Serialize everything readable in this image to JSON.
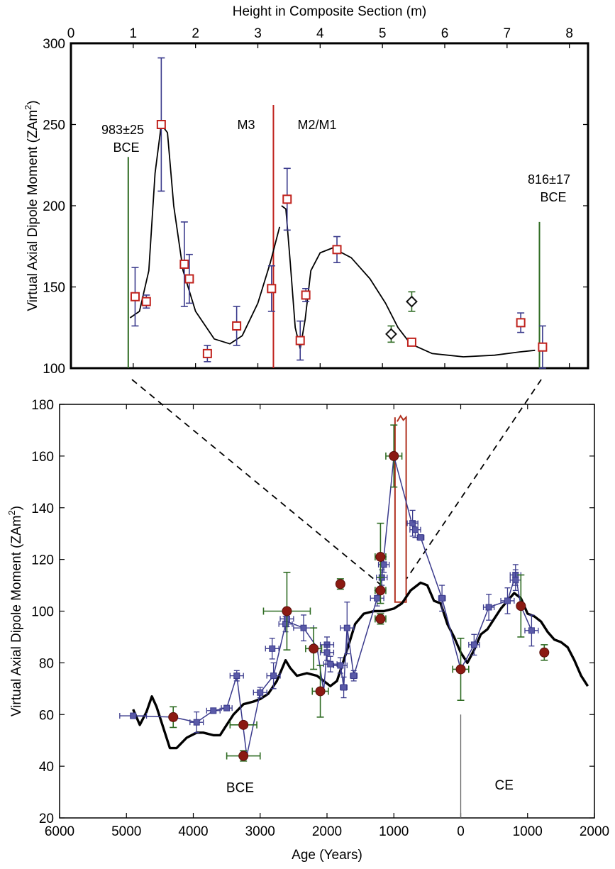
{
  "chart_data": [
    {
      "type": "scatter",
      "panel": "top",
      "xlabel": "Height in Composite Section (m)",
      "ylabel": "Virtual Axial Dipole Moment (ZAm",
      "ylabel_sup": "2",
      "ylabel_close": ")",
      "xlim": [
        0,
        8.3
      ],
      "ylim": [
        100,
        300
      ],
      "xticks": [
        "0",
        "1",
        "2",
        "3",
        "4",
        "5",
        "6",
        "7",
        "8"
      ],
      "yticks": [
        "100",
        "150",
        "200",
        "250",
        "300"
      ],
      "annotations": {
        "left_date_line1": "983±25",
        "left_date_line2": "BCE",
        "m3": "M3",
        "m2m1": "M2/M1",
        "right_date_line1": "816±17",
        "right_date_line2": "BCE"
      },
      "vlines": [
        {
          "x": 0.92,
          "y_top": 230,
          "color": "#2e6b22"
        },
        {
          "x": 3.25,
          "y_top": 262,
          "color": "#c0221d"
        },
        {
          "x": 7.52,
          "y_top": 190,
          "color": "#2e6b22"
        }
      ],
      "square_points": [
        {
          "x": 1.03,
          "y": 144,
          "err": 18
        },
        {
          "x": 1.21,
          "y": 141,
          "err": 4
        },
        {
          "x": 1.45,
          "y": 250,
          "err": 41
        },
        {
          "x": 1.82,
          "y": 164,
          "err": 26
        },
        {
          "x": 1.9,
          "y": 155,
          "err": 15
        },
        {
          "x": 2.19,
          "y": 109,
          "err": 5
        },
        {
          "x": 2.66,
          "y": 126,
          "err": 12
        },
        {
          "x": 3.22,
          "y": 149,
          "err": 14
        },
        {
          "x": 3.47,
          "y": 204,
          "err": 19
        },
        {
          "x": 3.68,
          "y": 117,
          "err": 12
        },
        {
          "x": 3.77,
          "y": 145,
          "err": 4
        },
        {
          "x": 4.27,
          "y": 173,
          "err": 8
        },
        {
          "x": 5.47,
          "y": 116,
          "err": 2
        },
        {
          "x": 7.22,
          "y": 128,
          "err": 6
        },
        {
          "x": 7.57,
          "y": 113,
          "err": 13
        }
      ],
      "diamond_points": [
        {
          "x": 5.14,
          "y": 121,
          "err": 5
        },
        {
          "x": 5.47,
          "y": 141,
          "err": 6
        }
      ],
      "curve_segments": [
        [
          [
            0.95,
            131
          ],
          [
            1.1,
            135
          ],
          [
            1.25,
            160
          ],
          [
            1.35,
            220
          ],
          [
            1.45,
            250
          ],
          [
            1.55,
            245
          ],
          [
            1.65,
            200
          ],
          [
            1.8,
            160
          ],
          [
            2.0,
            135
          ],
          [
            2.3,
            118
          ],
          [
            2.55,
            115
          ],
          [
            2.75,
            120
          ],
          [
            3.0,
            140
          ],
          [
            3.2,
            165
          ],
          [
            3.35,
            187
          ]
        ],
        [
          [
            3.38,
            200
          ],
          [
            3.45,
            198
          ],
          [
            3.52,
            165
          ],
          [
            3.6,
            125
          ],
          [
            3.68,
            112
          ],
          [
            3.76,
            130
          ],
          [
            3.85,
            160
          ],
          [
            4.0,
            171
          ],
          [
            4.2,
            174
          ],
          [
            4.5,
            168
          ],
          [
            4.8,
            155
          ],
          [
            5.05,
            140
          ],
          [
            5.25,
            125
          ],
          [
            5.45,
            115
          ],
          [
            5.8,
            109
          ],
          [
            6.3,
            107
          ],
          [
            6.8,
            108
          ],
          [
            7.2,
            110
          ],
          [
            7.45,
            111
          ]
        ]
      ]
    },
    {
      "type": "line",
      "panel": "bottom",
      "xlabel": "Age (Years)",
      "ylabel": "Virtual Axial Dipole Moment (ZAm",
      "ylabel_sup": "2",
      "ylabel_close": ")",
      "xlim": [
        -6000,
        2000
      ],
      "ylim": [
        20,
        180
      ],
      "xticks": [
        "6000",
        "5000",
        "4000",
        "3000",
        "2000",
        "1000",
        "0",
        "1000",
        "2000"
      ],
      "yticks": [
        "20",
        "40",
        "60",
        "80",
        "100",
        "120",
        "140",
        "160",
        "180"
      ],
      "region_labels": {
        "bce": "BCE",
        "ce": "CE"
      },
      "model_curve": [
        [
          -4900,
          62
        ],
        [
          -4800,
          56
        ],
        [
          -4700,
          61
        ],
        [
          -4620,
          67
        ],
        [
          -4550,
          63
        ],
        [
          -4450,
          55
        ],
        [
          -4350,
          47
        ],
        [
          -4250,
          47
        ],
        [
          -4100,
          51
        ],
        [
          -3950,
          53
        ],
        [
          -3850,
          53
        ],
        [
          -3700,
          52
        ],
        [
          -3600,
          52
        ],
        [
          -3500,
          56
        ],
        [
          -3400,
          60
        ],
        [
          -3250,
          64
        ],
        [
          -3100,
          65
        ],
        [
          -3000,
          66
        ],
        [
          -2880,
          68
        ],
        [
          -2750,
          73
        ],
        [
          -2620,
          81
        ],
        [
          -2550,
          78
        ],
        [
          -2450,
          75
        ],
        [
          -2300,
          76
        ],
        [
          -2150,
          75
        ],
        [
          -2050,
          73
        ],
        [
          -1950,
          71
        ],
        [
          -1850,
          73
        ],
        [
          -1700,
          85
        ],
        [
          -1580,
          95
        ],
        [
          -1450,
          99
        ],
        [
          -1300,
          100
        ],
        [
          -1150,
          100
        ],
        [
          -1000,
          101
        ],
        [
          -880,
          103
        ],
        [
          -750,
          108
        ],
        [
          -600,
          111
        ],
        [
          -500,
          110
        ],
        [
          -400,
          104
        ],
        [
          -300,
          103
        ],
        [
          -200,
          95
        ],
        [
          -100,
          90
        ],
        [
          0,
          84
        ],
        [
          100,
          80
        ],
        [
          200,
          85
        ],
        [
          300,
          91
        ],
        [
          400,
          93
        ],
        [
          500,
          97
        ],
        [
          600,
          101
        ],
        [
          700,
          104
        ],
        [
          800,
          107
        ],
        [
          900,
          105
        ],
        [
          1000,
          99
        ],
        [
          1100,
          98
        ],
        [
          1200,
          96
        ],
        [
          1300,
          92
        ],
        [
          1400,
          89
        ],
        [
          1500,
          88
        ],
        [
          1600,
          86
        ],
        [
          1700,
          81
        ],
        [
          1800,
          75
        ],
        [
          1900,
          71
        ]
      ],
      "blue_series": [
        [
          -4900,
          59.5
        ],
        [
          -4300,
          59
        ],
        [
          -3950,
          57
        ],
        [
          -3700,
          61.5
        ],
        [
          -3500,
          62.5
        ],
        [
          -3350,
          75
        ],
        [
          -3200,
          44
        ],
        [
          -3000,
          68.5
        ],
        [
          -2800,
          75
        ],
        [
          -2620,
          95
        ],
        [
          -2600,
          96
        ],
        [
          -2350,
          93.5
        ],
        [
          -2150,
          86
        ],
        [
          -2050,
          69
        ],
        [
          -2000,
          85
        ],
        [
          -2000,
          81
        ],
        [
          -1950,
          79
        ],
        [
          -1800,
          79
        ],
        [
          -1750,
          70.5
        ],
        [
          -1700,
          94
        ],
        [
          -1600,
          75
        ],
        [
          -1250,
          105
        ],
        [
          -1180,
          113
        ],
        [
          -1150,
          121
        ],
        [
          -1000,
          160
        ],
        [
          -720,
          133
        ],
        [
          -680,
          132
        ],
        [
          -600,
          128.5
        ],
        [
          -280,
          105
        ],
        [
          0,
          77.5
        ],
        [
          200,
          87
        ],
        [
          420,
          101.5
        ],
        [
          700,
          104
        ],
        [
          820,
          114
        ],
        [
          900,
          102
        ],
        [
          1060,
          92.5
        ]
      ],
      "blue_markers": [
        {
          "x": -4900,
          "y": 59.5,
          "xerr": 200,
          "yerr": 1
        },
        {
          "x": -3950,
          "y": 57,
          "xerr": 100,
          "yerr": 4
        },
        {
          "x": -3700,
          "y": 61.5,
          "xerr": 100,
          "yerr": 1
        },
        {
          "x": -3500,
          "y": 62.5,
          "xerr": 80,
          "yerr": 1
        },
        {
          "x": -3350,
          "y": 75,
          "xerr": 100,
          "yerr": 2
        },
        {
          "x": -3000,
          "y": 68.5,
          "xerr": 100,
          "yerr": 2
        },
        {
          "x": -2800,
          "y": 75,
          "xerr": 100,
          "yerr": 5
        },
        {
          "x": -2820,
          "y": 85.5,
          "xerr": 100,
          "yerr": 4
        },
        {
          "x": -2620,
          "y": 95,
          "xerr": 100,
          "yerr": 3
        },
        {
          "x": -2600,
          "y": 97,
          "xerr": 100,
          "yerr": 3
        },
        {
          "x": -2350,
          "y": 93.5,
          "xerr": 150,
          "yerr": 5
        },
        {
          "x": -2000,
          "y": 87,
          "xerr": 100,
          "yerr": 3
        },
        {
          "x": -2000,
          "y": 84,
          "xerr": 100,
          "yerr": 3
        },
        {
          "x": -1950,
          "y": 79.5,
          "xerr": 100,
          "yerr": 3
        },
        {
          "x": -1800,
          "y": 79,
          "xerr": 100,
          "yerr": 3
        },
        {
          "x": -1750,
          "y": 70.5,
          "xerr": 50,
          "yerr": 4
        },
        {
          "x": -1700,
          "y": 93.5,
          "xerr": 100,
          "yerr": 10
        },
        {
          "x": -1600,
          "y": 75,
          "xerr": 50,
          "yerr": 2
        },
        {
          "x": -1250,
          "y": 105,
          "xerr": 100,
          "yerr": 3
        },
        {
          "x": -1180,
          "y": 113,
          "xerr": 80,
          "yerr": 3
        },
        {
          "x": -1150,
          "y": 118,
          "xerr": 80,
          "yerr": 3
        },
        {
          "x": -720,
          "y": 134,
          "xerr": 80,
          "yerr": 5
        },
        {
          "x": -680,
          "y": 131.5,
          "xerr": 80,
          "yerr": 3
        },
        {
          "x": -600,
          "y": 128.5,
          "xerr": 50,
          "yerr": 1
        },
        {
          "x": -280,
          "y": 105,
          "xerr": 50,
          "yerr": 5
        },
        {
          "x": 200,
          "y": 87,
          "xerr": 80,
          "yerr": 4
        },
        {
          "x": 420,
          "y": 101.5,
          "xerr": 80,
          "yerr": 5
        },
        {
          "x": 700,
          "y": 104,
          "xerr": 100,
          "yerr": 5
        },
        {
          "x": 820,
          "y": 114,
          "xerr": 80,
          "yerr": 4
        },
        {
          "x": 820,
          "y": 112,
          "xerr": 80,
          "yerr": 4
        },
        {
          "x": 1060,
          "y": 92.5,
          "xerr": 100,
          "yerr": 6
        }
      ],
      "red_points": [
        {
          "x": -4300,
          "y": 59,
          "xerr": 0,
          "yerr": 4
        },
        {
          "x": -3250,
          "y": 56,
          "xerr": 200,
          "yerr": 0
        },
        {
          "x": -3250,
          "y": 44,
          "xerr": 250,
          "yerr": 2
        },
        {
          "x": -2600,
          "y": 100,
          "xerr": 350,
          "yerr": 15
        },
        {
          "x": -2200,
          "y": 85.5,
          "xerr": 120,
          "yerr": 8
        },
        {
          "x": -2100,
          "y": 69,
          "xerr": 120,
          "yerr": 10
        },
        {
          "x": -1800,
          "y": 110.5,
          "xerr": 0,
          "yerr": 2
        },
        {
          "x": -1200,
          "y": 121,
          "xerr": 80,
          "yerr": 13
        },
        {
          "x": -1200,
          "y": 108,
          "xerr": 80,
          "yerr": 5
        },
        {
          "x": -1200,
          "y": 97,
          "xerr": 80,
          "yerr": 2
        },
        {
          "x": -1000,
          "y": 160,
          "xerr": 120,
          "yerr": 12
        },
        {
          "x": 0,
          "y": 77.5,
          "xerr": 120,
          "yerr": 12
        },
        {
          "x": 900,
          "y": 102,
          "xerr": 0,
          "yerr": 12
        },
        {
          "x": 1250,
          "y": 84,
          "xerr": 0,
          "yerr": 3
        }
      ],
      "highlight_box": {
        "x0": -983,
        "x1": -816,
        "y0": 103.5,
        "y1": 175
      },
      "ce_divider": {
        "x": 0,
        "y_top": 60
      }
    }
  ]
}
